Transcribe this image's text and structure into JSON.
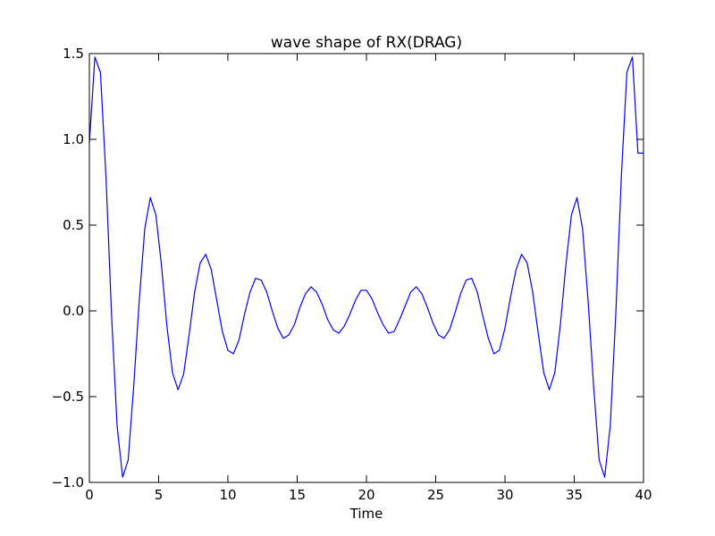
{
  "chart_data": {
    "type": "line",
    "title": "wave shape of RX(DRAG)",
    "xlabel": "Time",
    "ylabel": "",
    "xlim": [
      0,
      40
    ],
    "ylim": [
      -1.0,
      1.5
    ],
    "xticks": [
      0,
      5,
      10,
      15,
      20,
      25,
      30,
      35,
      40
    ],
    "yticks": [
      -1.0,
      -0.5,
      0.0,
      0.5,
      1.0,
      1.5
    ],
    "xtick_labels": [
      "0",
      "5",
      "10",
      "15",
      "20",
      "25",
      "30",
      "35",
      "40"
    ],
    "ytick_labels": [
      "−1.0",
      "−0.5",
      "0.0",
      "0.5",
      "1.0",
      "1.5"
    ],
    "grid": false,
    "series": [
      {
        "color": "#0000ff",
        "x": [
          0,
          0.4,
          0.8,
          1.2,
          1.6,
          2.0,
          2.4,
          2.8,
          3.2,
          3.6,
          4.0,
          4.4,
          4.8,
          5.2,
          5.6,
          6.0,
          6.4,
          6.8,
          7.2,
          7.6,
          8.0,
          8.4,
          8.8,
          9.2,
          9.6,
          10.0,
          10.4,
          10.8,
          11.2,
          11.6,
          12.0,
          12.4,
          12.8,
          13.2,
          13.6,
          14.0,
          14.4,
          14.8,
          15.2,
          15.6,
          16.0,
          16.4,
          16.8,
          17.2,
          17.6,
          18.0,
          18.4,
          18.8,
          19.2,
          19.6,
          20.0,
          20.4,
          20.8,
          21.2,
          21.6,
          22.0,
          22.4,
          22.8,
          23.2,
          23.6,
          24.0,
          24.4,
          24.8,
          25.2,
          25.6,
          26.0,
          26.4,
          26.8,
          27.2,
          27.6,
          28.0,
          28.4,
          28.8,
          29.2,
          29.6,
          30.0,
          30.4,
          30.8,
          31.2,
          31.6,
          32.0,
          32.4,
          32.8,
          33.2,
          33.6,
          34.0,
          34.4,
          34.8,
          35.2,
          35.6,
          36.0,
          36.4,
          36.8,
          37.2,
          37.6,
          38.0,
          38.4,
          38.8,
          39.2,
          39.6,
          40.0
        ],
        "y": [
          0.98,
          1.48,
          1.39,
          0.78,
          -0.02,
          -0.67,
          -0.97,
          -0.87,
          -0.44,
          0.06,
          0.48,
          0.66,
          0.56,
          0.27,
          -0.09,
          -0.36,
          -0.46,
          -0.37,
          -0.14,
          0.11,
          0.28,
          0.33,
          0.24,
          0.06,
          -0.12,
          -0.23,
          -0.25,
          -0.17,
          -0.02,
          0.11,
          0.19,
          0.18,
          0.11,
          0.0,
          -0.1,
          -0.16,
          -0.14,
          -0.08,
          0.02,
          0.1,
          0.14,
          0.11,
          0.04,
          -0.05,
          -0.11,
          -0.13,
          -0.09,
          -0.02,
          0.06,
          0.12,
          0.12,
          0.07,
          -0.01,
          -0.08,
          -0.13,
          -0.12,
          -0.05,
          0.03,
          0.11,
          0.14,
          0.1,
          0.02,
          -0.07,
          -0.14,
          -0.16,
          -0.11,
          -0.01,
          0.1,
          0.18,
          0.19,
          0.11,
          -0.03,
          -0.16,
          -0.25,
          -0.23,
          -0.1,
          0.08,
          0.24,
          0.33,
          0.28,
          0.11,
          -0.13,
          -0.36,
          -0.46,
          -0.36,
          -0.08,
          0.27,
          0.56,
          0.66,
          0.48,
          0.06,
          -0.44,
          -0.87,
          -0.97,
          -0.67,
          -0.02,
          0.78,
          1.39,
          1.48,
          0.92,
          0.92
        ]
      }
    ]
  }
}
